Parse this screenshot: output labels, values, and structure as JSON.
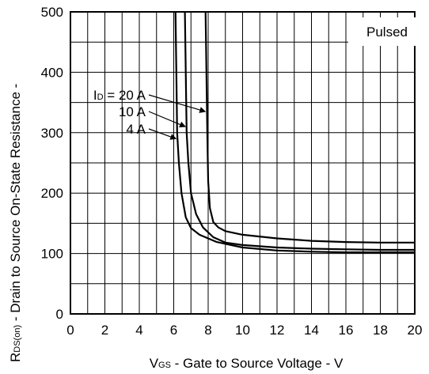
{
  "chart_data": {
    "type": "line",
    "title": "",
    "xlabel": {
      "prefix": "V",
      "sub": "GS",
      "rest": " - Gate to Source Voltage - V"
    },
    "ylabel": {
      "prefix": "R",
      "sub": "DS(on)",
      "rest": " - Drain to Source On-State Resistance -"
    },
    "xlim": [
      0,
      20
    ],
    "ylim": [
      0,
      500
    ],
    "x_ticks": [
      0,
      2,
      4,
      6,
      8,
      10,
      12,
      14,
      16,
      18,
      20
    ],
    "y_ticks": [
      0,
      100,
      200,
      300,
      400,
      500
    ],
    "x_minor_step": 1,
    "y_minor_step": 50,
    "grid": true,
    "annotation": "Pulsed",
    "series": [
      {
        "name": "I",
        "name_sub": "D",
        "name_rest": " = 20 A",
        "x": [
          7.85,
          7.9,
          7.95,
          8.0,
          8.1,
          8.3,
          8.6,
          9.0,
          10,
          12,
          14,
          16,
          18,
          20
        ],
        "y": [
          500,
          400,
          300,
          220,
          175,
          152,
          143,
          137,
          131,
          125,
          121,
          119,
          118,
          118
        ]
      },
      {
        "name": "10 A",
        "name_sub": "",
        "name_rest": "",
        "x": [
          6.65,
          6.7,
          6.75,
          6.85,
          7.0,
          7.3,
          7.7,
          8.3,
          9,
          10,
          12,
          14,
          16,
          18,
          20
        ],
        "y": [
          500,
          400,
          300,
          250,
          200,
          165,
          143,
          127,
          118,
          114,
          110,
          108,
          107,
          106,
          106
        ]
      },
      {
        "name": "4 A",
        "name_sub": "",
        "name_rest": "",
        "x": [
          6.1,
          6.15,
          6.2,
          6.3,
          6.45,
          6.7,
          7.0,
          7.5,
          8.5,
          10,
          12,
          14,
          16,
          18,
          20
        ],
        "y": [
          500,
          400,
          300,
          250,
          200,
          160,
          142,
          131,
          119,
          110,
          105,
          103,
          102,
          102,
          102
        ]
      }
    ]
  }
}
